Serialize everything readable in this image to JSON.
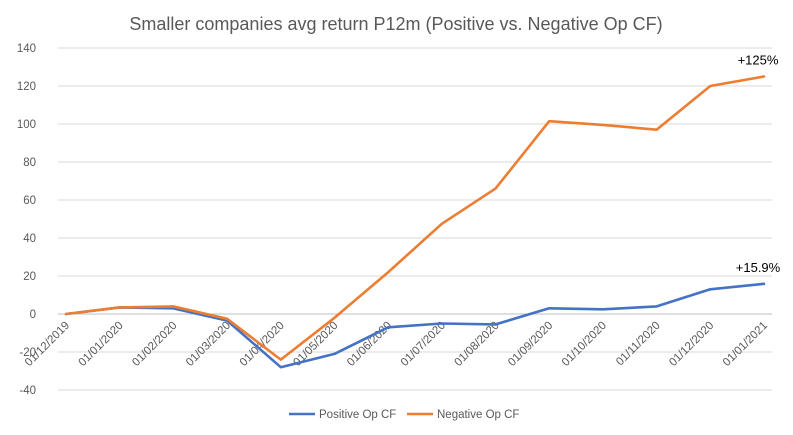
{
  "chart_data": {
    "type": "line",
    "title": "Smaller companies avg return P12m (Positive vs. Negative Op CF)",
    "xlabel": "",
    "ylabel": "",
    "ylim": [
      -40,
      140
    ],
    "yticks": [
      -40,
      -20,
      0,
      20,
      40,
      60,
      80,
      100,
      120,
      140
    ],
    "grid": true,
    "legend": "bottom",
    "categories": [
      "01/12/2019",
      "01/01/2020",
      "01/02/2020",
      "01/03/2020",
      "01/04/2020",
      "01/05/2020",
      "01/06/2020",
      "01/07/2020",
      "01/08/2020",
      "01/09/2020",
      "01/10/2020",
      "01/11/2020",
      "01/12/2020",
      "01/01/2021"
    ],
    "series": [
      {
        "name": "Positive Op CF",
        "color": "#4472C4",
        "values": [
          0,
          3.5,
          3,
          -3.5,
          -28,
          -21,
          -7,
          -5,
          -5.5,
          3,
          2.5,
          4,
          13,
          15.9
        ]
      },
      {
        "name": "Negative Op CF",
        "color": "#ED7D31",
        "values": [
          0,
          3.5,
          4,
          -2.5,
          -24,
          -2,
          22,
          47.5,
          66,
          101.5,
          99.5,
          97,
          120,
          125
        ]
      }
    ],
    "annotations": [
      {
        "text": "+125%",
        "series": 1,
        "index": 13
      },
      {
        "text": "+15.9%",
        "series": 0,
        "index": 13
      }
    ]
  }
}
